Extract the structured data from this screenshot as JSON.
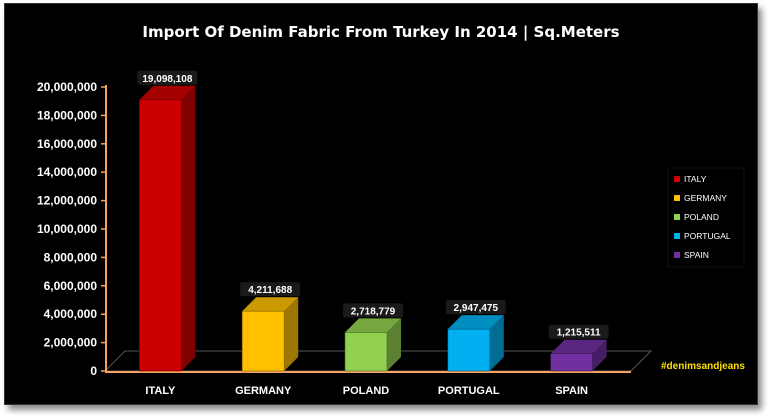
{
  "chart_data": {
    "type": "bar",
    "title": "Import Of Denim Fabric From Turkey In 2014 | Sq.Meters",
    "categories": [
      "ITALY",
      "GERMANY",
      "POLAND",
      "PORTUGAL",
      "SPAIN"
    ],
    "values": [
      19098108,
      4211688,
      2718779,
      2947475,
      1215511
    ],
    "value_labels": [
      "19,098,108",
      "4,211,688",
      "2,718,779",
      "2,947,475",
      "1,215,511"
    ],
    "y_ticks": [
      "0",
      "2,000,000",
      "4,000,000",
      "6,000,000",
      "8,000,000",
      "10,000,000",
      "12,000,000",
      "14,000,000",
      "16,000,000",
      "18,000,000",
      "20,000,000"
    ],
    "ylim": [
      0,
      20000000
    ],
    "legend": {
      "position": "right",
      "entries": [
        "ITALY",
        "GERMANY",
        "POLAND",
        "PORTUGAL",
        "SPAIN"
      ]
    },
    "colors": [
      "#cc0000",
      "#ffc000",
      "#92d050",
      "#00b0f0",
      "#7030a0"
    ],
    "axis_color": "#f4a460",
    "grid": false,
    "style": "3d-column"
  },
  "watermark": "#denimsandjeans"
}
